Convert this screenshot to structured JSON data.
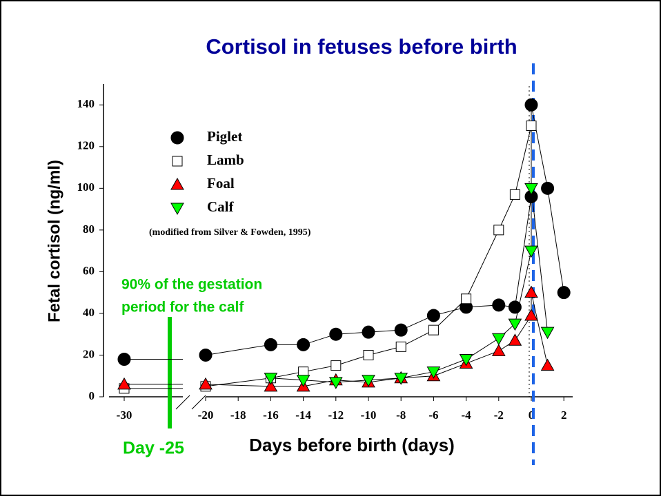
{
  "chart_data": {
    "type": "line",
    "title": "Cortisol in fetuses before birth",
    "xlabel": "Days before birth (days)",
    "ylabel": "Fetal cortisol (ng/ml)",
    "note": "(modified from Silver & Fowden, 1995)",
    "annotation": [
      "90% of the gestation",
      "period for the calf"
    ],
    "marker_label": "Day -25",
    "marker_x": -25,
    "birth_x": 0,
    "xlim": [
      -30,
      2
    ],
    "xticks": [
      -30,
      -20,
      -18,
      -16,
      -14,
      -12,
      -10,
      -8,
      -6,
      -4,
      -2,
      0,
      2
    ],
    "ylim": [
      0,
      150
    ],
    "yticks": [
      0,
      20,
      40,
      60,
      80,
      100,
      120,
      140
    ],
    "series": [
      {
        "name": "Piglet",
        "color": "#000000",
        "marker": "circle",
        "x": [
          -30,
          -20,
          -16,
          -14,
          -12,
          -10,
          -8,
          -6,
          -4,
          -2,
          -1,
          0,
          0,
          1,
          2
        ],
        "values": [
          18,
          20,
          25,
          25,
          30,
          31,
          32,
          39,
          43,
          44,
          43,
          96,
          140,
          100,
          50
        ]
      },
      {
        "name": "Lamb",
        "color": "#ffffff",
        "marker": "square",
        "x": [
          -30,
          -20,
          -16,
          -14,
          -12,
          -10,
          -8,
          -6,
          -4,
          -2,
          -1,
          0
        ],
        "values": [
          4,
          5,
          9,
          12,
          15,
          20,
          24,
          32,
          47,
          80,
          97,
          130
        ]
      },
      {
        "name": "Foal",
        "color": "#ff0000",
        "marker": "triangle",
        "x": [
          -30,
          -20,
          -16,
          -14,
          -12,
          -10,
          -8,
          -6,
          -4,
          -2,
          -1,
          0,
          0,
          1
        ],
        "values": [
          6,
          6,
          5,
          5,
          8,
          7,
          9,
          10,
          16,
          22,
          27,
          39,
          50,
          15
        ]
      },
      {
        "name": "Calf",
        "color": "#00ff00",
        "marker": "triangle-down",
        "x": [
          -16,
          -14,
          -12,
          -10,
          -8,
          -6,
          -4,
          -2,
          -1,
          0,
          0,
          1
        ],
        "values": [
          9,
          8,
          7,
          8,
          9,
          12,
          18,
          28,
          35,
          70,
          100,
          31
        ]
      }
    ]
  }
}
